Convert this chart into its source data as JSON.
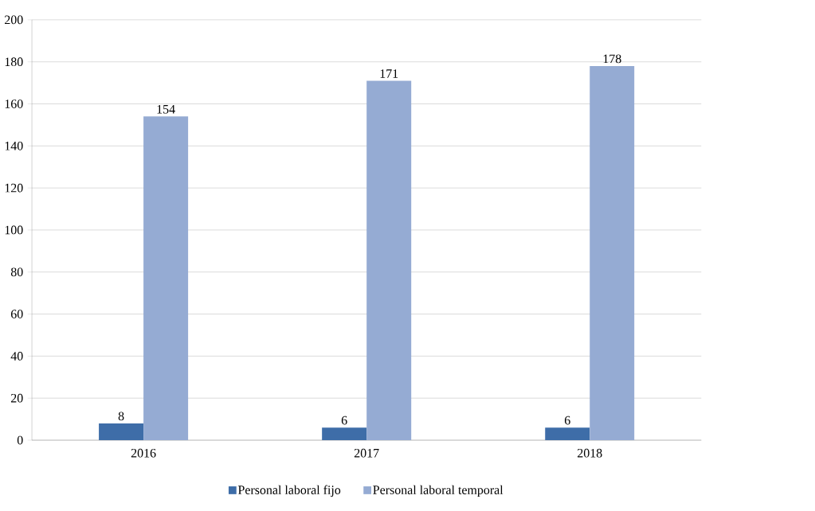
{
  "chart_data": {
    "type": "bar",
    "categories": [
      "2016",
      "2017",
      "2018"
    ],
    "series": [
      {
        "name": "Personal laboral fijo",
        "color": "#3e6da8",
        "values": [
          8,
          6,
          6
        ]
      },
      {
        "name": "Personal laboral temporal",
        "color": "#95abd3",
        "values": [
          154,
          171,
          178
        ]
      }
    ],
    "ylim": [
      0,
      200
    ],
    "yticks": [
      0,
      20,
      40,
      60,
      80,
      100,
      120,
      140,
      160,
      180,
      200
    ],
    "grid": "y",
    "legend": "bottom",
    "data_labels": true
  }
}
